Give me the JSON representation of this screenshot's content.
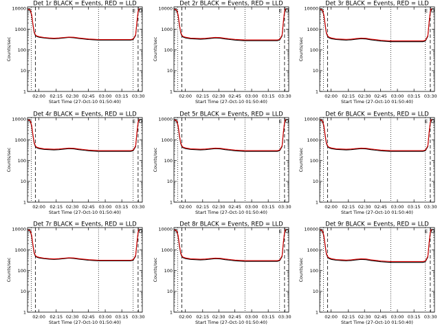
{
  "chart_data": {
    "type": "line",
    "xlabel": "Start Time (27-Oct-10 01:50:40)",
    "ylabel": "Counts/sec",
    "x_ticks": [
      "02:00",
      "02:15",
      "02:30",
      "02:45",
      "03:00",
      "03:15",
      "03:30"
    ],
    "y_ticks": [
      "1",
      "10",
      "100",
      "1000",
      "10000"
    ],
    "x_range_minutes": [
      -10.7,
      35.7
    ],
    "ylim": [
      1,
      12000
    ],
    "y_scale": "log",
    "markers": {
      "left": "S",
      "right_a": "E",
      "right_b": "D"
    },
    "dashed_lines_min": [
      -7.5,
      34
    ],
    "dotted_lines_min": [
      -9.2,
      18,
      32
    ],
    "x": [
      -10.5,
      -10,
      -9.5,
      -9,
      -8.5,
      -8,
      -7.5,
      -7,
      -6,
      -4,
      -2,
      0,
      2,
      4,
      6,
      8,
      10,
      12,
      14,
      16,
      18,
      20,
      22,
      24,
      26,
      28,
      30,
      31,
      32,
      33,
      33.5,
      34,
      34.5
    ],
    "panels": [
      {
        "title": "Det 1r BLACK = Events, RED = LLD",
        "events": [
          8800,
          8500,
          7500,
          4500,
          1600,
          700,
          500,
          450,
          410,
          380,
          360,
          350,
          360,
          380,
          400,
          390,
          360,
          340,
          320,
          310,
          300,
          300,
          300,
          300,
          300,
          300,
          300,
          300,
          320,
          500,
          2000,
          7000,
          9500
        ],
        "lld": [
          9200,
          9000,
          8000,
          5000,
          1800,
          760,
          540,
          480,
          440,
          400,
          380,
          370,
          380,
          400,
          420,
          410,
          380,
          360,
          340,
          330,
          320,
          320,
          320,
          320,
          320,
          320,
          320,
          320,
          340,
          540,
          2200,
          7500,
          10000
        ]
      },
      {
        "title": "Det 2r BLACK = Events, RED = LLD",
        "events": [
          8800,
          8500,
          7500,
          4500,
          1600,
          700,
          480,
          420,
          380,
          350,
          340,
          330,
          340,
          360,
          380,
          370,
          340,
          320,
          300,
          290,
          280,
          280,
          280,
          280,
          280,
          280,
          280,
          280,
          300,
          480,
          2000,
          7000,
          9500
        ],
        "lld": [
          9200,
          9000,
          8000,
          5000,
          1800,
          760,
          520,
          450,
          410,
          375,
          365,
          355,
          365,
          385,
          405,
          395,
          365,
          345,
          325,
          315,
          305,
          305,
          305,
          305,
          305,
          305,
          305,
          305,
          325,
          520,
          2200,
          7500,
          10000
        ]
      },
      {
        "title": "Det 3r BLACK = Events, RED = LLD",
        "events": [
          8800,
          8500,
          7500,
          4500,
          1600,
          650,
          450,
          390,
          350,
          320,
          310,
          300,
          310,
          330,
          350,
          340,
          310,
          290,
          270,
          260,
          250,
          250,
          250,
          250,
          250,
          250,
          250,
          250,
          270,
          450,
          1900,
          7000,
          9500
        ],
        "lld": [
          9200,
          9000,
          8000,
          5000,
          1800,
          700,
          490,
          420,
          380,
          345,
          335,
          325,
          335,
          355,
          375,
          365,
          335,
          315,
          295,
          285,
          275,
          275,
          275,
          275,
          275,
          275,
          275,
          275,
          295,
          490,
          2100,
          7500,
          10000
        ]
      },
      {
        "title": "Det 4r BLACK = Events, RED = LLD",
        "events": [
          8800,
          8500,
          7500,
          4500,
          1600,
          700,
          480,
          420,
          380,
          350,
          340,
          330,
          340,
          360,
          380,
          370,
          340,
          320,
          300,
          290,
          280,
          280,
          280,
          280,
          280,
          280,
          280,
          280,
          300,
          480,
          2000,
          7000,
          9500
        ],
        "lld": [
          9200,
          9000,
          8000,
          5000,
          1800,
          760,
          520,
          450,
          410,
          375,
          365,
          355,
          365,
          385,
          405,
          395,
          365,
          345,
          325,
          315,
          305,
          305,
          305,
          305,
          305,
          305,
          305,
          305,
          325,
          520,
          2200,
          7500,
          10000
        ]
      },
      {
        "title": "Det 5r BLACK = Events, RED = LLD",
        "events": [
          8800,
          8500,
          7500,
          4500,
          1600,
          700,
          480,
          420,
          380,
          350,
          340,
          330,
          340,
          360,
          380,
          370,
          340,
          320,
          300,
          290,
          280,
          280,
          280,
          280,
          280,
          280,
          280,
          280,
          300,
          480,
          2000,
          7000,
          9500
        ],
        "lld": [
          9200,
          9000,
          8000,
          5000,
          1800,
          760,
          520,
          450,
          410,
          375,
          365,
          355,
          365,
          385,
          405,
          395,
          365,
          345,
          325,
          315,
          305,
          305,
          305,
          305,
          305,
          305,
          305,
          305,
          325,
          520,
          2200,
          7500,
          10000
        ]
      },
      {
        "title": "Det 6r BLACK = Events, RED = LLD",
        "events": [
          8800,
          8500,
          7500,
          4500,
          1600,
          700,
          480,
          420,
          380,
          350,
          340,
          330,
          340,
          360,
          380,
          370,
          340,
          320,
          300,
          290,
          280,
          280,
          280,
          280,
          280,
          280,
          280,
          280,
          300,
          480,
          2000,
          7000,
          9500
        ],
        "lld": [
          9200,
          9000,
          8000,
          5000,
          1800,
          760,
          520,
          450,
          410,
          375,
          365,
          355,
          365,
          385,
          405,
          395,
          365,
          345,
          325,
          315,
          305,
          305,
          305,
          305,
          305,
          305,
          305,
          305,
          325,
          520,
          2200,
          7500,
          10000
        ]
      },
      {
        "title": "Det 7r BLACK = Events, RED = LLD",
        "events": [
          8800,
          8500,
          7500,
          4500,
          1600,
          700,
          500,
          450,
          410,
          380,
          360,
          350,
          360,
          380,
          400,
          390,
          360,
          340,
          320,
          310,
          300,
          300,
          300,
          300,
          300,
          300,
          300,
          300,
          320,
          500,
          2000,
          7000,
          9500
        ],
        "lld": [
          9200,
          9000,
          8000,
          5000,
          1800,
          760,
          540,
          480,
          440,
          400,
          380,
          370,
          380,
          400,
          420,
          410,
          380,
          360,
          340,
          330,
          320,
          320,
          320,
          320,
          320,
          320,
          320,
          320,
          340,
          540,
          2200,
          7500,
          10000
        ]
      },
      {
        "title": "Det 8r BLACK = Events, RED = LLD",
        "events": [
          8800,
          8500,
          7500,
          4500,
          1600,
          700,
          480,
          420,
          380,
          350,
          340,
          330,
          340,
          360,
          380,
          370,
          340,
          320,
          300,
          290,
          280,
          280,
          280,
          280,
          280,
          280,
          280,
          280,
          300,
          480,
          2000,
          7000,
          9500
        ],
        "lld": [
          9200,
          9000,
          8000,
          5000,
          1800,
          760,
          520,
          450,
          410,
          375,
          365,
          355,
          365,
          385,
          405,
          395,
          365,
          345,
          325,
          315,
          305,
          305,
          305,
          305,
          305,
          305,
          305,
          305,
          325,
          520,
          2200,
          7500,
          10000
        ]
      },
      {
        "title": "Det 9r BLACK = Events, RED = LLD",
        "events": [
          8800,
          8500,
          7500,
          4500,
          1600,
          650,
          450,
          390,
          350,
          320,
          310,
          300,
          310,
          330,
          350,
          340,
          310,
          290,
          270,
          260,
          250,
          250,
          250,
          250,
          250,
          250,
          250,
          250,
          270,
          450,
          1900,
          7000,
          9500
        ],
        "lld": [
          9200,
          9000,
          8000,
          5000,
          1800,
          700,
          490,
          420,
          380,
          345,
          335,
          325,
          335,
          355,
          375,
          365,
          335,
          315,
          295,
          285,
          275,
          275,
          275,
          275,
          275,
          275,
          275,
          275,
          295,
          490,
          2100,
          7500,
          10000
        ]
      }
    ]
  }
}
